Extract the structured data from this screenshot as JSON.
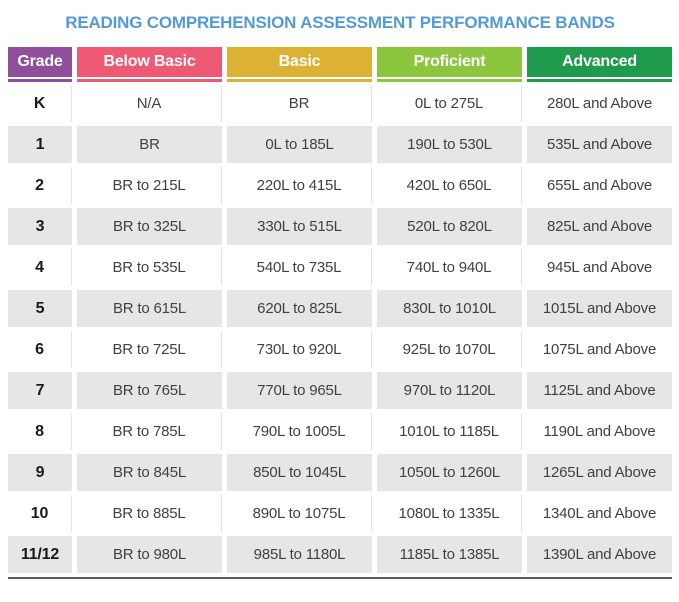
{
  "title": "READING COMPREHENSION ASSESSMENT PERFORMANCE BANDS",
  "colors": {
    "title_blue": "#549bd5",
    "grade_purple": "#8f4f9d",
    "below_basic_pink": "#ee5a74",
    "basic_gold": "#ddb234",
    "proficient_green": "#8cc63f",
    "advanced_green": "#1f9b4d",
    "row_gray": "#e6e6e6",
    "bottom_rule_gray": "#58595b"
  },
  "chart_data": {
    "type": "table",
    "title": "READING COMPREHENSION ASSESSMENT PERFORMANCE BANDS",
    "columns": [
      {
        "label": "Grade",
        "color": "#8f4f9d"
      },
      {
        "label": "Below Basic",
        "color": "#ee5a74"
      },
      {
        "label": "Basic",
        "color": "#ddb234"
      },
      {
        "label": "Proficient",
        "color": "#8cc63f"
      },
      {
        "label": "Advanced",
        "color": "#1f9b4d"
      }
    ],
    "rows": [
      {
        "grade": "K",
        "values": [
          "N/A",
          "BR",
          "0L to 275L",
          "280L and Above"
        ]
      },
      {
        "grade": "1",
        "values": [
          "BR",
          "0L to 185L",
          "190L to 530L",
          "535L and Above"
        ]
      },
      {
        "grade": "2",
        "values": [
          "BR to 215L",
          "220L to 415L",
          "420L to 650L",
          "655L and Above"
        ]
      },
      {
        "grade": "3",
        "values": [
          "BR to 325L",
          "330L to 515L",
          "520L to 820L",
          "825L and Above"
        ]
      },
      {
        "grade": "4",
        "values": [
          "BR to 535L",
          "540L to 735L",
          "740L to 940L",
          "945L and Above"
        ]
      },
      {
        "grade": "5",
        "values": [
          "BR to 615L",
          "620L to 825L",
          "830L to 1010L",
          "1015L and Above"
        ]
      },
      {
        "grade": "6",
        "values": [
          "BR to 725L",
          "730L to 920L",
          "925L to 1070L",
          "1075L and Above"
        ]
      },
      {
        "grade": "7",
        "values": [
          "BR to 765L",
          "770L to 965L",
          "970L to 1120L",
          "1125L and Above"
        ]
      },
      {
        "grade": "8",
        "values": [
          "BR to 785L",
          "790L to 1005L",
          "1010L to 1185L",
          "1190L and Above"
        ]
      },
      {
        "grade": "9",
        "values": [
          "BR to 845L",
          "850L to 1045L",
          "1050L to 1260L",
          "1265L and Above"
        ]
      },
      {
        "grade": "10",
        "values": [
          "BR to 885L",
          "890L to 1075L",
          "1080L to 1335L",
          "1340L and Above"
        ]
      },
      {
        "grade": "11/12",
        "values": [
          "BR to 980L",
          "985L to 1180L",
          "1185L to 1385L",
          "1390L and Above"
        ]
      }
    ]
  }
}
